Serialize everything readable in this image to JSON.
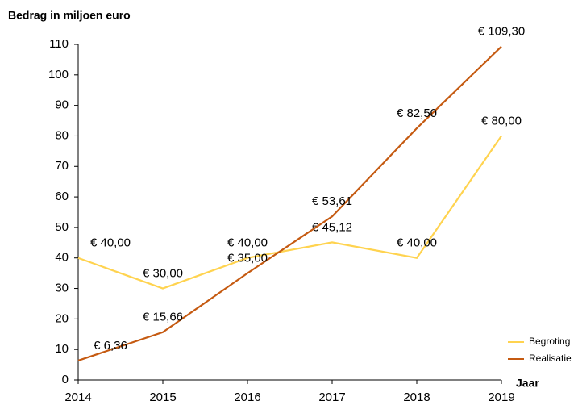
{
  "chart_data": {
    "type": "line",
    "ylabel": "Bedrag in miljoen euro",
    "xlabel": "Jaar",
    "x": [
      2014,
      2015,
      2016,
      2017,
      2018,
      2019
    ],
    "xlim": [
      2014,
      2019
    ],
    "xticks": [
      2014,
      2015,
      2016,
      2017,
      2018,
      2019
    ],
    "ylim": [
      0,
      110
    ],
    "yticks": [
      0,
      10,
      20,
      30,
      40,
      50,
      60,
      70,
      80,
      90,
      100,
      110
    ],
    "grid": false,
    "legend": "lower right",
    "series": [
      {
        "name": "Begroting",
        "color": "#ffd34f",
        "values": [
          40,
          30,
          40,
          45.12,
          40,
          80
        ],
        "value_labels": [
          "€ 40,00",
          "€ 30,00",
          "€ 40,00",
          "€ 45,12",
          "€ 40,00",
          "€ 80,00"
        ]
      },
      {
        "name": "Realisatie",
        "color": "#c55a11",
        "values": [
          6.36,
          15.66,
          35,
          53.61,
          82.5,
          109.3
        ],
        "value_labels": [
          "€ 6,36",
          "€ 15,66",
          "€ 35,00",
          "€ 53,61",
          "€ 82,50",
          "€ 109,30"
        ]
      }
    ]
  }
}
